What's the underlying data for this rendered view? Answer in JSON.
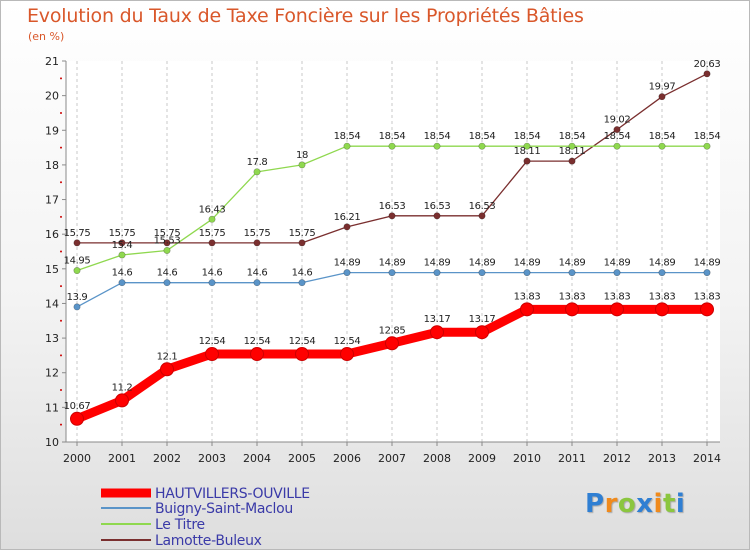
{
  "chart_data": {
    "type": "line",
    "title": "Evolution du Taux de Taxe Foncière sur les Propriétés Bâties",
    "unit_label": "(en %)",
    "xlabel": "",
    "ylabel": "",
    "x": [
      "2000",
      "2001",
      "2002",
      "2003",
      "2004",
      "2005",
      "2006",
      "2007",
      "2008",
      "2009",
      "2010",
      "2011",
      "2012",
      "2013",
      "2014"
    ],
    "ylim": [
      10,
      21
    ],
    "yticks": [
      "10",
      "11",
      "12",
      "13",
      "14",
      "15",
      "16",
      "17",
      "18",
      "19",
      "20",
      "21"
    ],
    "grid": "vertical dashed",
    "legend_position": "bottom-left",
    "series": [
      {
        "name": "HAUTVILLERS-OUVILLE",
        "color": "#ff0000",
        "values": [
          10.67,
          11.2,
          12.1,
          12.54,
          12.54,
          12.54,
          12.54,
          12.85,
          13.17,
          13.17,
          13.83,
          13.83,
          13.83,
          13.83,
          13.83
        ],
        "labels": [
          "10.67",
          "11.2",
          "12.1",
          "12.54",
          "12.54",
          "12.54",
          "12.54",
          "12.85",
          "13.17",
          "13.17",
          "13.83",
          "13.83",
          "13.83",
          "13.83",
          "13.83"
        ]
      },
      {
        "name": "Buigny-Saint-Maclou",
        "color": "#5a94c8",
        "values": [
          13.9,
          14.6,
          14.6,
          14.6,
          14.6,
          14.6,
          14.89,
          14.89,
          14.89,
          14.89,
          14.89,
          14.89,
          14.89,
          14.89,
          14.89
        ],
        "labels": [
          "13.9",
          "14.6",
          "14.6",
          "14.6",
          "14.6",
          "14.6",
          "14.89",
          "14.89",
          "14.89",
          "14.89",
          "14.89",
          "14.89",
          "14.89",
          "14.89",
          "14.89"
        ]
      },
      {
        "name": "Le Titre",
        "color": "#8fd84f",
        "values": [
          14.95,
          15.4,
          15.53,
          16.43,
          17.8,
          18,
          18.54,
          18.54,
          18.54,
          18.54,
          18.54,
          18.54,
          18.54,
          18.54,
          18.54
        ],
        "labels": [
          "14.95",
          "15.4",
          "15.53",
          "16.43",
          "17.8",
          "18",
          "18.54",
          "18.54",
          "18.54",
          "18.54",
          "18.54",
          "18.54",
          "18.54",
          "18.54",
          "18.54"
        ]
      },
      {
        "name": "Lamotte-Buleux",
        "color": "#7a2f2f",
        "values": [
          15.75,
          15.75,
          15.75,
          15.75,
          15.75,
          15.75,
          16.21,
          16.53,
          16.53,
          16.53,
          18.11,
          18.11,
          19.02,
          19.97,
          20.63
        ],
        "labels": [
          "15.75",
          "15.75",
          "15.75",
          "15.75",
          "15.75",
          "15.75",
          "16.21",
          "16.53",
          "16.53",
          "16.53",
          "18.11",
          "18.11",
          "19.02",
          "19.97",
          "20.63"
        ]
      }
    ]
  },
  "logo": {
    "letters": [
      "P",
      "r",
      "o",
      "x",
      "i",
      "t",
      "i"
    ],
    "colors": [
      "#2f7fd3",
      "#f08a1c",
      "#8bc63f",
      "#2f7fd3",
      "#f08a1c",
      "#8bc63f",
      "#2f7fd3"
    ]
  }
}
